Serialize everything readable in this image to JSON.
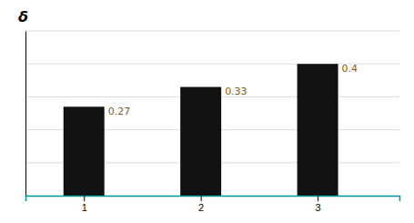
{
  "chart_data": {
    "type": "bar",
    "ylabel": "δ",
    "x": [
      1,
      2,
      3
    ],
    "values": [
      0.27,
      0.33,
      0.4
    ],
    "color": "#111111",
    "xlim": [
      0.5,
      3.7
    ],
    "xticks": [
      1,
      2,
      3
    ],
    "ylim": [
      0,
      0.5
    ],
    "yticks": [
      0.0,
      0.1,
      0.2,
      0.3,
      0.4,
      0.5
    ],
    "grid": true,
    "data_labels": true,
    "tick_labels": "x"
  }
}
